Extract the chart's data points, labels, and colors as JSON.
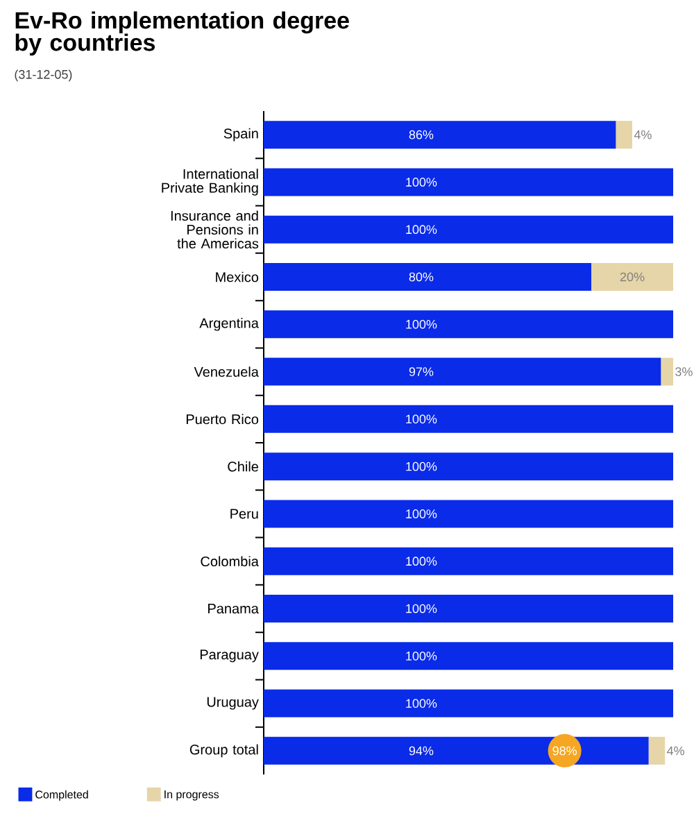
{
  "chart_data": {
    "type": "bar",
    "orientation": "horizontal",
    "stacked": true,
    "title": "Ev-Ro implementation degree by countries",
    "subtitle": "(31-12-05)",
    "categories": [
      "Spain",
      "International Private Banking",
      "Insurance and Pensions in the Americas",
      "Mexico",
      "Argentina",
      "Venezuela",
      "Puerto Rico",
      "Chile",
      "Peru",
      "Colombia",
      "Panama",
      "Paraguay",
      "Uruguay",
      "Group total"
    ],
    "series": [
      {
        "name": "Completed",
        "color": "#0a2be8",
        "values": [
          86,
          100,
          100,
          80,
          100,
          97,
          100,
          100,
          100,
          100,
          100,
          100,
          100,
          94
        ],
        "value_labels": [
          "86%",
          "100%",
          "100%",
          "80%",
          "100%",
          "97%",
          "100%",
          "100%",
          "100%",
          "100%",
          "100%",
          "100%",
          "100%",
          "94%"
        ]
      },
      {
        "name": "In progress",
        "color": "#e6d5a8",
        "values": [
          4,
          null,
          null,
          20,
          null,
          3,
          null,
          null,
          null,
          null,
          null,
          null,
          null,
          4
        ],
        "value_labels": [
          "4%",
          null,
          null,
          "20%",
          null,
          "3%",
          null,
          null,
          null,
          null,
          null,
          null,
          null,
          "4%"
        ]
      }
    ],
    "totals": [
      null,
      null,
      null,
      null,
      null,
      null,
      null,
      null,
      null,
      null,
      null,
      null,
      null,
      "98%"
    ],
    "xlim": [
      0,
      100
    ],
    "tick_labels": "y",
    "legend": "bottom left"
  }
}
